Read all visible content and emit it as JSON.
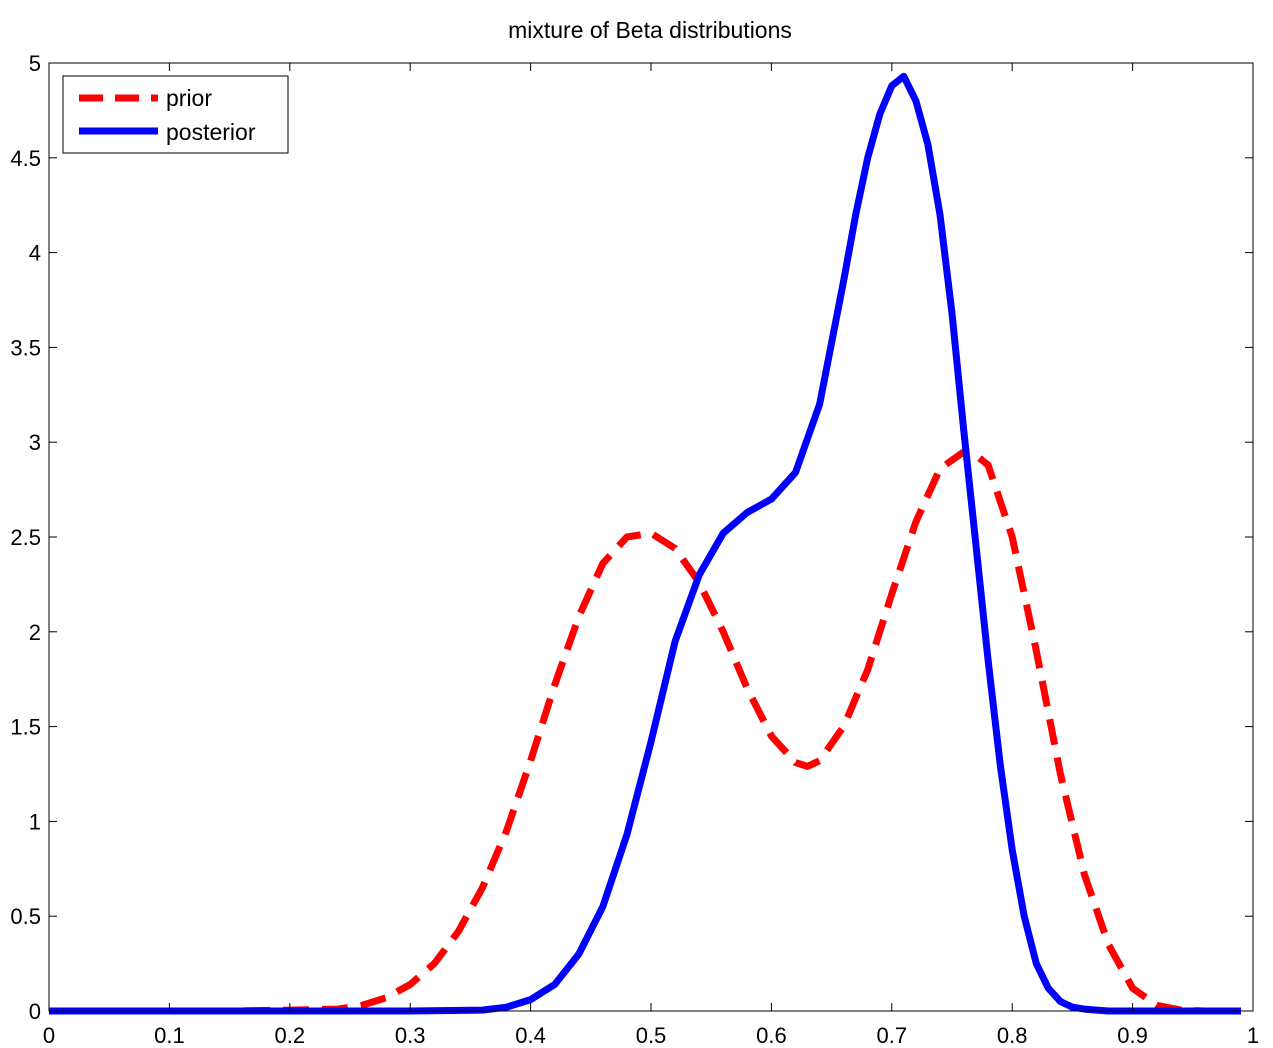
{
  "chart_data": {
    "type": "line",
    "title": "mixture of Beta distributions",
    "xlabel": "",
    "ylabel": "",
    "xlim": [
      0,
      1
    ],
    "ylim": [
      0,
      5
    ],
    "xticks": [
      "0",
      "0.1",
      "0.2",
      "0.3",
      "0.4",
      "0.5",
      "0.6",
      "0.7",
      "0.8",
      "0.9",
      "1"
    ],
    "yticks": [
      "0",
      "0.5",
      "1",
      "1.5",
      "2",
      "2.5",
      "3",
      "3.5",
      "4",
      "4.5",
      "5"
    ],
    "grid": false,
    "legend_position": "top-left",
    "series": [
      {
        "name": "prior",
        "color": "#ff0000",
        "style": "dashed",
        "x": [
          0,
          0.05,
          0.1,
          0.15,
          0.2,
          0.24,
          0.26,
          0.28,
          0.3,
          0.32,
          0.34,
          0.36,
          0.38,
          0.4,
          0.42,
          0.44,
          0.46,
          0.48,
          0.5,
          0.52,
          0.54,
          0.56,
          0.58,
          0.6,
          0.62,
          0.63,
          0.64,
          0.66,
          0.68,
          0.7,
          0.72,
          0.74,
          0.76,
          0.77,
          0.78,
          0.8,
          0.82,
          0.84,
          0.86,
          0.88,
          0.9,
          0.92,
          0.94,
          0.96,
          0.99
        ],
        "y": [
          0,
          0,
          0,
          0,
          0.005,
          0.01,
          0.03,
          0.07,
          0.14,
          0.25,
          0.42,
          0.65,
          0.95,
          1.32,
          1.72,
          2.08,
          2.36,
          2.5,
          2.52,
          2.44,
          2.26,
          2.0,
          1.7,
          1.45,
          1.31,
          1.29,
          1.32,
          1.5,
          1.8,
          2.2,
          2.58,
          2.86,
          2.95,
          2.93,
          2.88,
          2.5,
          1.9,
          1.25,
          0.72,
          0.35,
          0.12,
          0.03,
          0.005,
          0,
          0
        ]
      },
      {
        "name": "posterior",
        "color": "#0000ff",
        "style": "solid",
        "x": [
          0,
          0.1,
          0.2,
          0.3,
          0.36,
          0.38,
          0.4,
          0.42,
          0.44,
          0.46,
          0.48,
          0.5,
          0.52,
          0.54,
          0.56,
          0.58,
          0.6,
          0.62,
          0.64,
          0.66,
          0.67,
          0.68,
          0.69,
          0.7,
          0.71,
          0.72,
          0.73,
          0.74,
          0.75,
          0.76,
          0.77,
          0.78,
          0.79,
          0.8,
          0.81,
          0.82,
          0.83,
          0.84,
          0.85,
          0.86,
          0.87,
          0.88,
          0.9,
          0.99
        ],
        "y": [
          0,
          0,
          0,
          0,
          0.005,
          0.02,
          0.06,
          0.14,
          0.3,
          0.55,
          0.93,
          1.42,
          1.95,
          2.3,
          2.52,
          2.63,
          2.7,
          2.84,
          3.2,
          3.85,
          4.2,
          4.5,
          4.73,
          4.88,
          4.93,
          4.8,
          4.57,
          4.2,
          3.68,
          3.05,
          2.45,
          1.85,
          1.3,
          0.85,
          0.5,
          0.25,
          0.12,
          0.05,
          0.02,
          0.01,
          0.005,
          0,
          0,
          0
        ]
      }
    ]
  }
}
